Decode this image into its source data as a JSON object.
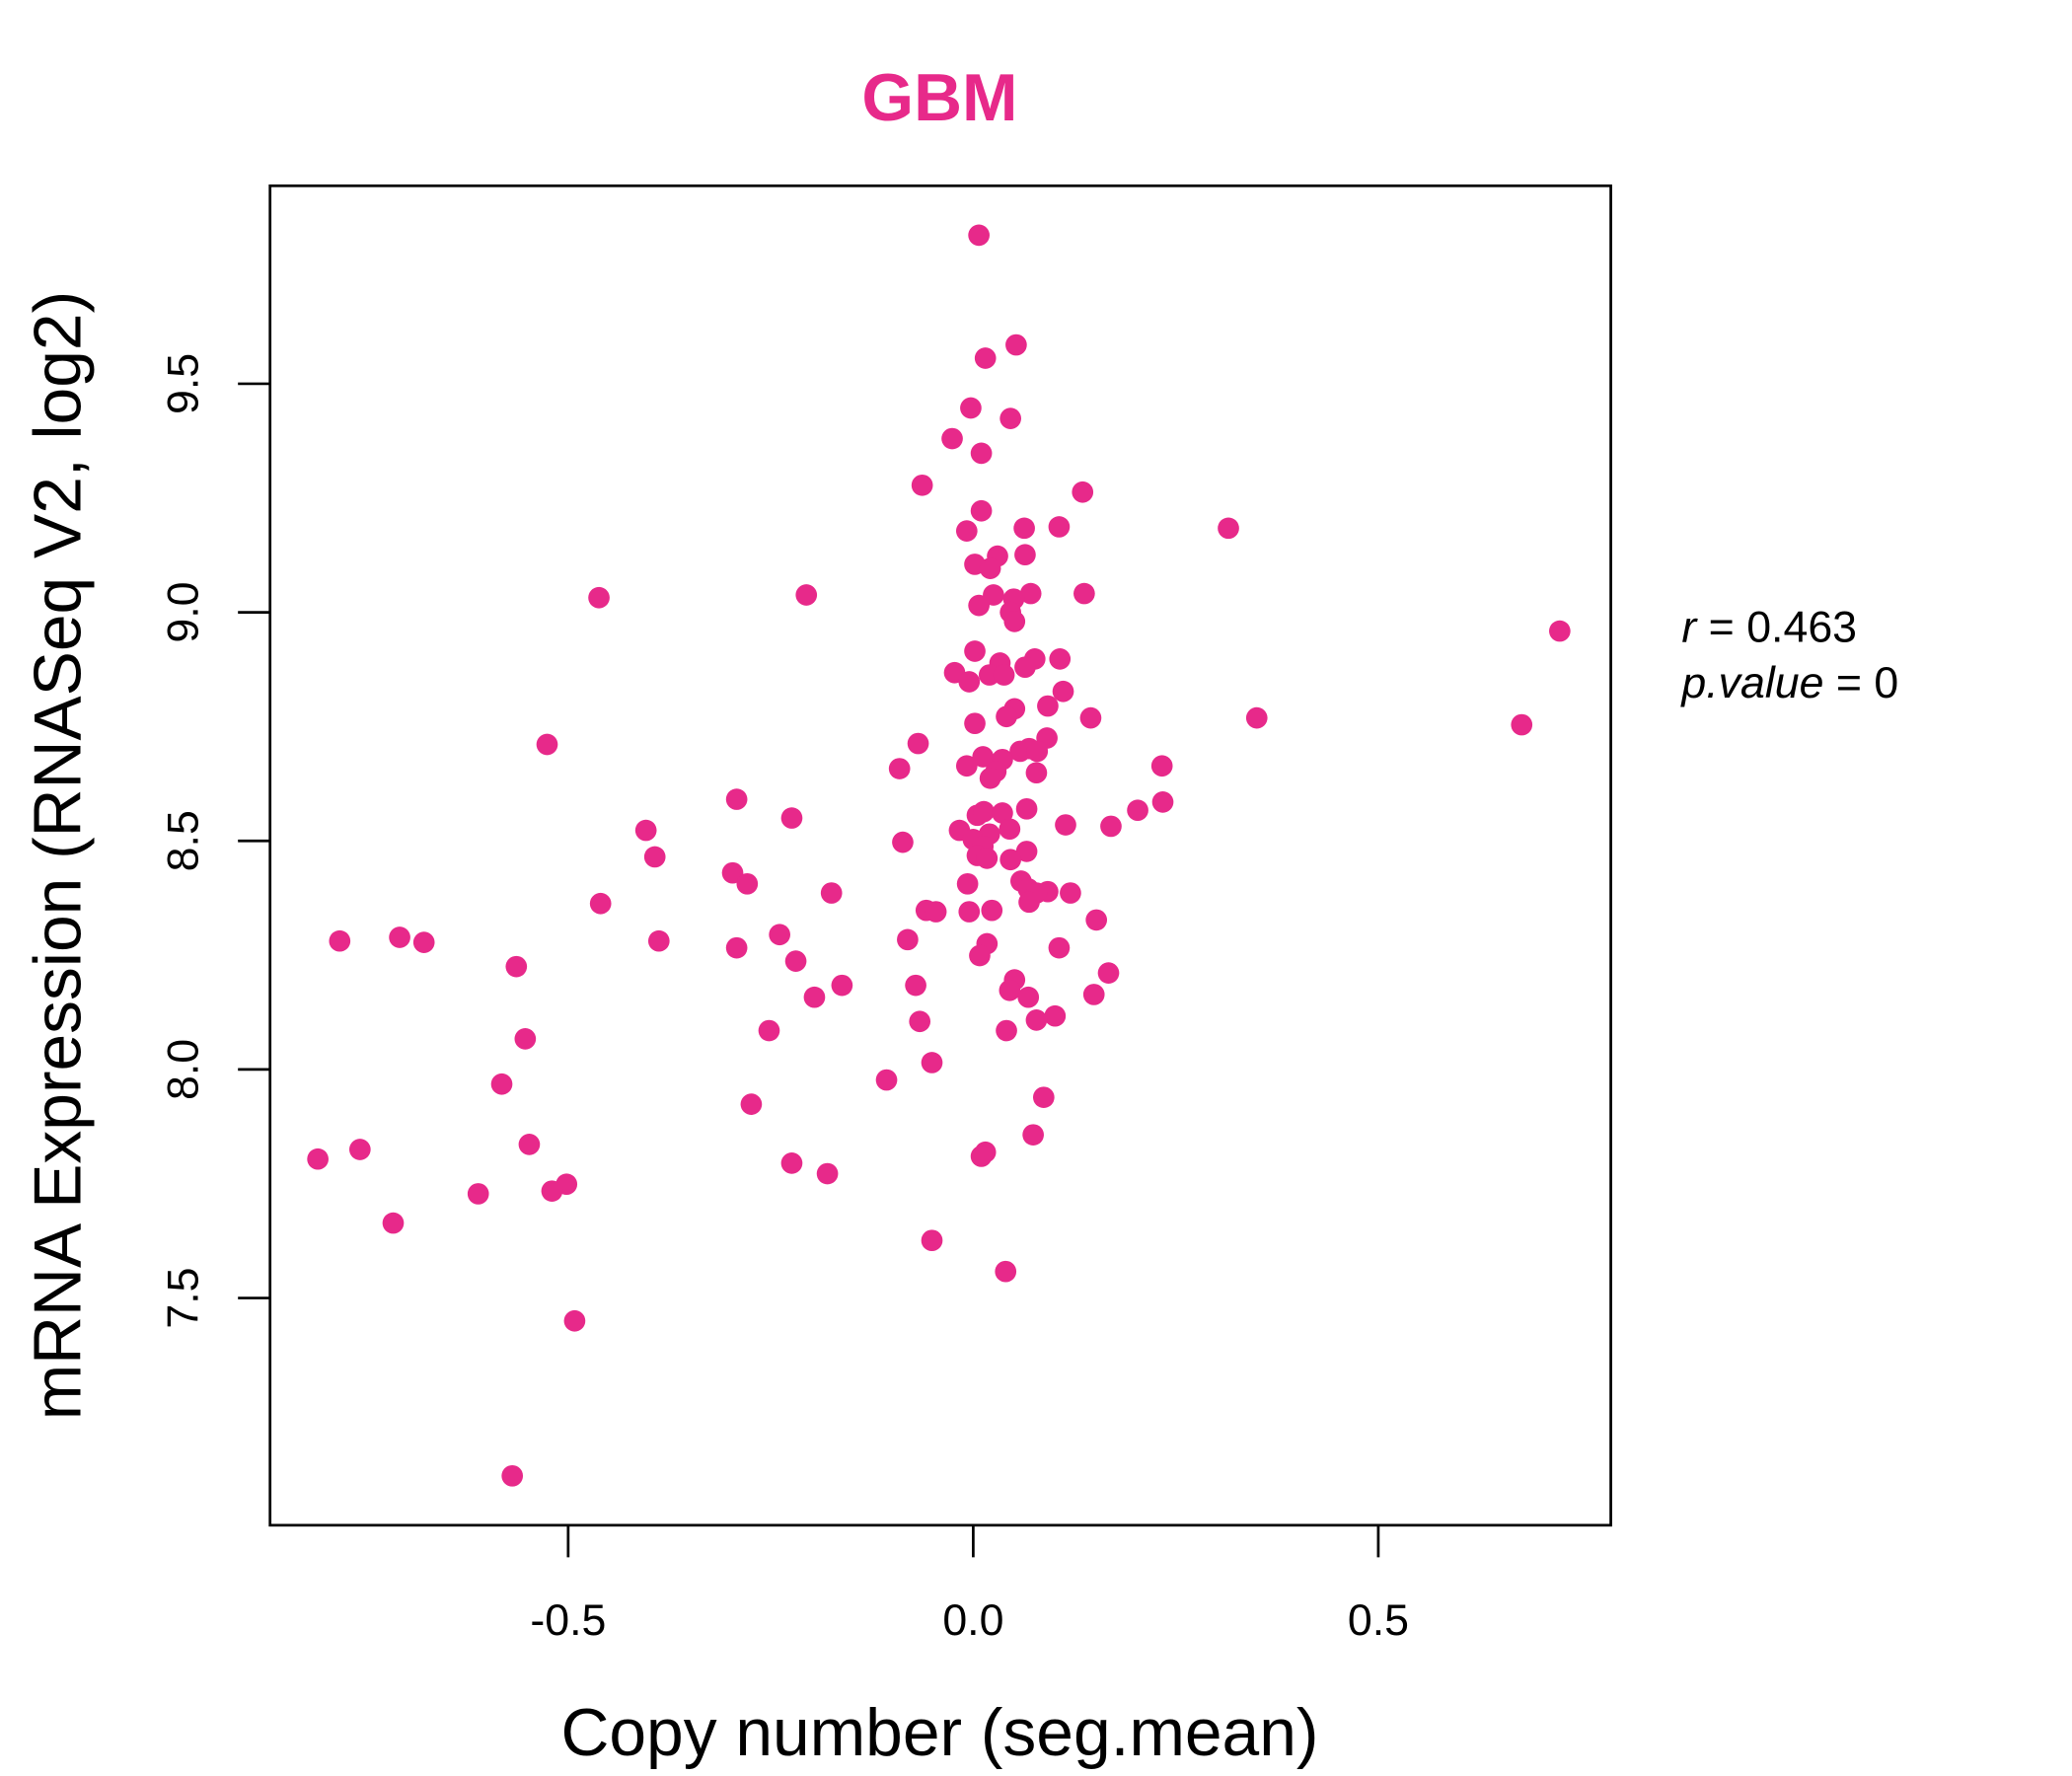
{
  "chart_data": {
    "type": "scatter",
    "title": "GBM",
    "xlabel": "Copy number (seg.mean)",
    "ylabel": "mRNA Expression (RNASeq V2, log2)",
    "xlim": [
      -0.868,
      0.787
    ],
    "ylim": [
      7.003,
      9.933
    ],
    "xticks": [
      -0.5,
      0.0,
      0.5
    ],
    "xtick_labels": [
      "-0.5",
      "0.0",
      "0.5"
    ],
    "yticks": [
      7.5,
      8.0,
      8.5,
      9.0,
      9.5
    ],
    "ytick_labels": [
      "7.5",
      "8.0",
      "8.5",
      "9.0",
      "9.5"
    ],
    "grid": false,
    "color": "#e7298a",
    "annotation": {
      "r_label": "r",
      "r_value": "0.463",
      "p_label": "p.value",
      "p_value": "0"
    },
    "points": [
      [
        0.007,
        9.825
      ],
      [
        0.015,
        9.556
      ],
      [
        0.053,
        9.585
      ],
      [
        -0.003,
        9.447
      ],
      [
        0.046,
        9.424
      ],
      [
        -0.026,
        9.38
      ],
      [
        0.01,
        9.348
      ],
      [
        -0.063,
        9.278
      ],
      [
        0.135,
        9.263
      ],
      [
        0.01,
        9.222
      ],
      [
        -0.008,
        9.178
      ],
      [
        0.063,
        9.184
      ],
      [
        0.106,
        9.187
      ],
      [
        0.315,
        9.184
      ],
      [
        0.064,
        9.126
      ],
      [
        0.03,
        9.123
      ],
      [
        0.002,
        9.105
      ],
      [
        0.021,
        9.096
      ],
      [
        -0.206,
        9.038
      ],
      [
        -0.462,
        9.032
      ],
      [
        0.025,
        9.038
      ],
      [
        0.071,
        9.041
      ],
      [
        0.137,
        9.041
      ],
      [
        0.05,
        9.029
      ],
      [
        0.007,
        9.015
      ],
      [
        0.046,
        9.0
      ],
      [
        0.051,
        8.98
      ],
      [
        0.724,
        8.959
      ],
      [
        0.002,
        8.915
      ],
      [
        0.076,
        8.898
      ],
      [
        0.107,
        8.898
      ],
      [
        0.033,
        8.889
      ],
      [
        0.064,
        8.88
      ],
      [
        -0.023,
        8.868
      ],
      [
        0.02,
        8.863
      ],
      [
        0.038,
        8.863
      ],
      [
        -0.005,
        8.848
      ],
      [
        0.111,
        8.827
      ],
      [
        0.092,
        8.795
      ],
      [
        0.051,
        8.789
      ],
      [
        0.145,
        8.769
      ],
      [
        0.35,
        8.769
      ],
      [
        0.677,
        8.754
      ],
      [
        0.041,
        8.772
      ],
      [
        0.002,
        8.757
      ],
      [
        -0.068,
        8.713
      ],
      [
        -0.526,
        8.711
      ],
      [
        0.091,
        8.725
      ],
      [
        0.069,
        8.702
      ],
      [
        0.058,
        8.696
      ],
      [
        0.079,
        8.696
      ],
      [
        0.012,
        8.684
      ],
      [
        0.036,
        8.678
      ],
      [
        -0.008,
        8.664
      ],
      [
        0.233,
        8.664
      ],
      [
        -0.091,
        8.658
      ],
      [
        0.028,
        8.652
      ],
      [
        0.078,
        8.649
      ],
      [
        0.021,
        8.637
      ],
      [
        0.234,
        8.585
      ],
      [
        -0.292,
        8.591
      ],
      [
        0.203,
        8.567
      ],
      [
        0.066,
        8.57
      ],
      [
        -0.224,
        8.55
      ],
      [
        0.005,
        8.556
      ],
      [
        0.013,
        8.564
      ],
      [
        0.036,
        8.561
      ],
      [
        0.114,
        8.535
      ],
      [
        0.17,
        8.532
      ],
      [
        -0.404,
        8.523
      ],
      [
        -0.017,
        8.523
      ],
      [
        0.045,
        8.526
      ],
      [
        0.02,
        8.515
      ],
      [
        0.0,
        8.503
      ],
      [
        -0.087,
        8.497
      ],
      [
        0.012,
        8.488
      ],
      [
        0.066,
        8.477
      ],
      [
        -0.393,
        8.465
      ],
      [
        0.005,
        8.468
      ],
      [
        0.017,
        8.462
      ],
      [
        0.046,
        8.459
      ],
      [
        -0.297,
        8.43
      ],
      [
        -0.279,
        8.406
      ],
      [
        -0.007,
        8.406
      ],
      [
        0.059,
        8.412
      ],
      [
        0.068,
        8.395
      ],
      [
        0.092,
        8.389
      ],
      [
        0.12,
        8.386
      ],
      [
        -0.175,
        8.386
      ],
      [
        0.078,
        8.386
      ],
      [
        0.069,
        8.366
      ],
      [
        -0.46,
        8.363
      ],
      [
        -0.058,
        8.348
      ],
      [
        -0.046,
        8.345
      ],
      [
        -0.005,
        8.345
      ],
      [
        0.023,
        8.348
      ],
      [
        0.152,
        8.327
      ],
      [
        -0.239,
        8.295
      ],
      [
        -0.708,
        8.289
      ],
      [
        -0.782,
        8.281
      ],
      [
        -0.678,
        8.278
      ],
      [
        -0.388,
        8.281
      ],
      [
        -0.081,
        8.284
      ],
      [
        -0.292,
        8.266
      ],
      [
        0.017,
        8.275
      ],
      [
        0.106,
        8.266
      ],
      [
        0.008,
        8.249
      ],
      [
        -0.219,
        8.237
      ],
      [
        -0.564,
        8.225
      ],
      [
        0.167,
        8.211
      ],
      [
        0.051,
        8.196
      ],
      [
        -0.162,
        8.184
      ],
      [
        -0.071,
        8.184
      ],
      [
        0.045,
        8.173
      ],
      [
        0.149,
        8.164
      ],
      [
        -0.196,
        8.158
      ],
      [
        0.068,
        8.158
      ],
      [
        0.101,
        8.117
      ],
      [
        0.078,
        8.108
      ],
      [
        -0.066,
        8.105
      ],
      [
        -0.252,
        8.085
      ],
      [
        0.041,
        8.085
      ],
      [
        -0.553,
        8.067
      ],
      [
        -0.051,
        8.015
      ],
      [
        -0.107,
        7.977
      ],
      [
        -0.582,
        7.968
      ],
      [
        0.087,
        7.939
      ],
      [
        -0.274,
        7.924
      ],
      [
        0.074,
        7.857
      ],
      [
        -0.548,
        7.836
      ],
      [
        -0.757,
        7.825
      ],
      [
        -0.809,
        7.804
      ],
      [
        0.015,
        7.819
      ],
      [
        0.01,
        7.81
      ],
      [
        -0.224,
        7.795
      ],
      [
        -0.18,
        7.772
      ],
      [
        -0.502,
        7.749
      ],
      [
        -0.52,
        7.734
      ],
      [
        -0.611,
        7.728
      ],
      [
        -0.716,
        7.664
      ],
      [
        -0.051,
        7.626
      ],
      [
        0.04,
        7.558
      ],
      [
        -0.492,
        7.45
      ],
      [
        -0.569,
        7.111
      ]
    ]
  }
}
